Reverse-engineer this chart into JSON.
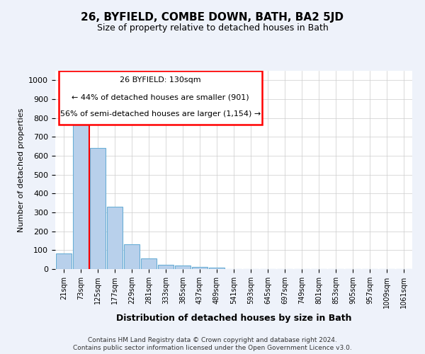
{
  "title": "26, BYFIELD, COMBE DOWN, BATH, BA2 5JD",
  "subtitle": "Size of property relative to detached houses in Bath",
  "xlabel": "Distribution of detached houses by size in Bath",
  "ylabel": "Number of detached properties",
  "footer_line1": "Contains HM Land Registry data © Crown copyright and database right 2024.",
  "footer_line2": "Contains public sector information licensed under the Open Government Licence v3.0.",
  "annotation_line1": "26 BYFIELD: 130sqm",
  "annotation_line2": "← 44% of detached houses are smaller (901)",
  "annotation_line3": "56% of semi-detached houses are larger (1,154) →",
  "bar_heights": [
    83,
    770,
    643,
    329,
    133,
    57,
    22,
    17,
    10,
    8,
    0,
    0,
    0,
    0,
    0,
    0,
    0,
    0,
    0,
    0,
    0
  ],
  "bin_labels": [
    "21sqm",
    "73sqm",
    "125sqm",
    "177sqm",
    "229sqm",
    "281sqm",
    "333sqm",
    "385sqm",
    "437sqm",
    "489sqm",
    "541sqm",
    "593sqm",
    "645sqm",
    "697sqm",
    "749sqm",
    "801sqm",
    "853sqm",
    "905sqm",
    "957sqm",
    "1009sqm",
    "1061sqm"
  ],
  "bar_color": "#b8d0eb",
  "bar_edge_color": "#6aaed6",
  "red_line_x": 1.5,
  "ylim": [
    0,
    1050
  ],
  "yticks": [
    0,
    100,
    200,
    300,
    400,
    500,
    600,
    700,
    800,
    900,
    1000
  ],
  "background_color": "#eef2fa",
  "plot_background": "#ffffff",
  "grid_color": "#cccccc"
}
